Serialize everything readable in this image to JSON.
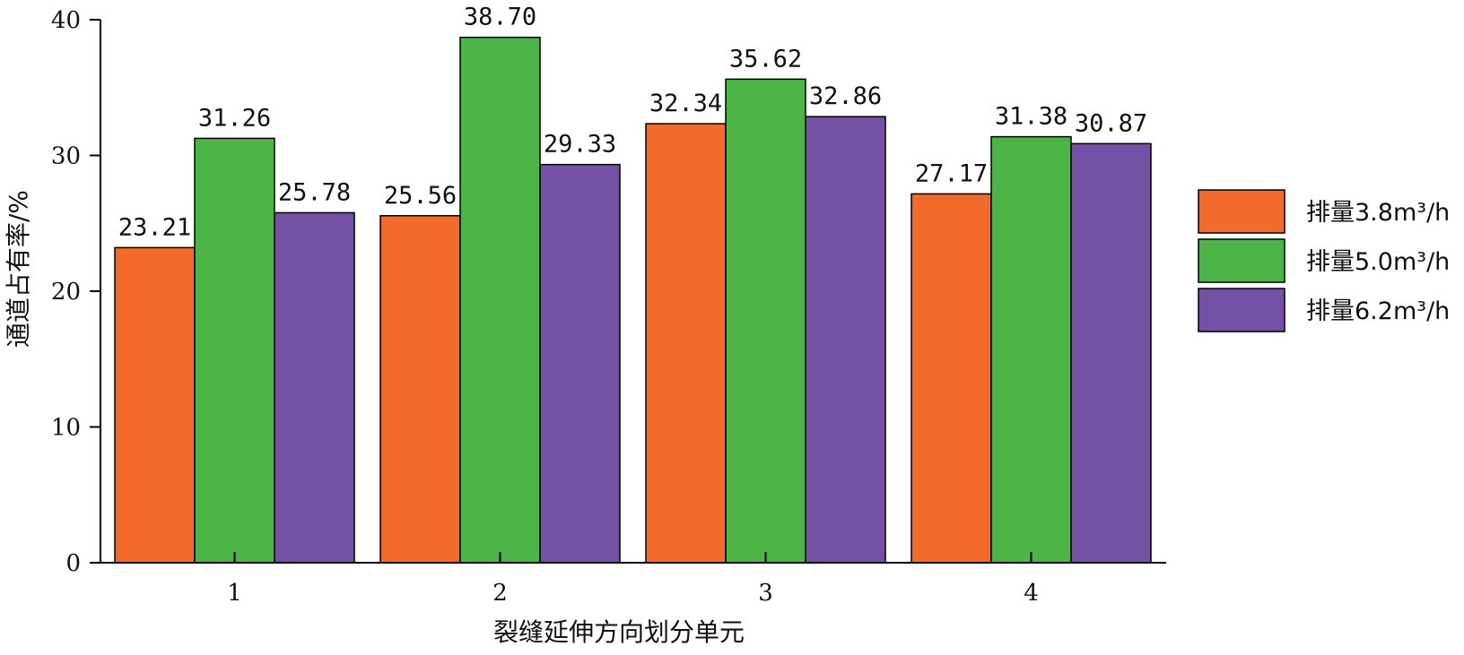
{
  "chart_data": {
    "type": "bar",
    "categories": [
      "1",
      "2",
      "3",
      "4"
    ],
    "series": [
      {
        "name": "排量3.8m³/h",
        "color": "#F26B2A",
        "values": [
          23.21,
          25.56,
          32.34,
          27.17
        ]
      },
      {
        "name": "排量5.0m³/h",
        "color": "#4DB447",
        "values": [
          31.26,
          38.7,
          35.62,
          31.38
        ]
      },
      {
        "name": "排量6.2m³/h",
        "color": "#7352A6",
        "values": [
          25.78,
          29.33,
          32.86,
          30.87
        ]
      }
    ],
    "data_labels": [
      [
        "23.21",
        "25.56",
        "32.34",
        "27.17"
      ],
      [
        "31.26",
        "38.70",
        "35.62",
        "31.38"
      ],
      [
        "25.78",
        "29.33",
        "32.86",
        "30.87"
      ]
    ],
    "title": "",
    "xlabel": "裂缝延伸方向划分单元",
    "ylabel": "通道占有率/%",
    "ylim": [
      0,
      40
    ],
    "yticks": [
      "0",
      "10",
      "20",
      "30",
      "40"
    ],
    "grid": false,
    "legend_position": "right"
  }
}
